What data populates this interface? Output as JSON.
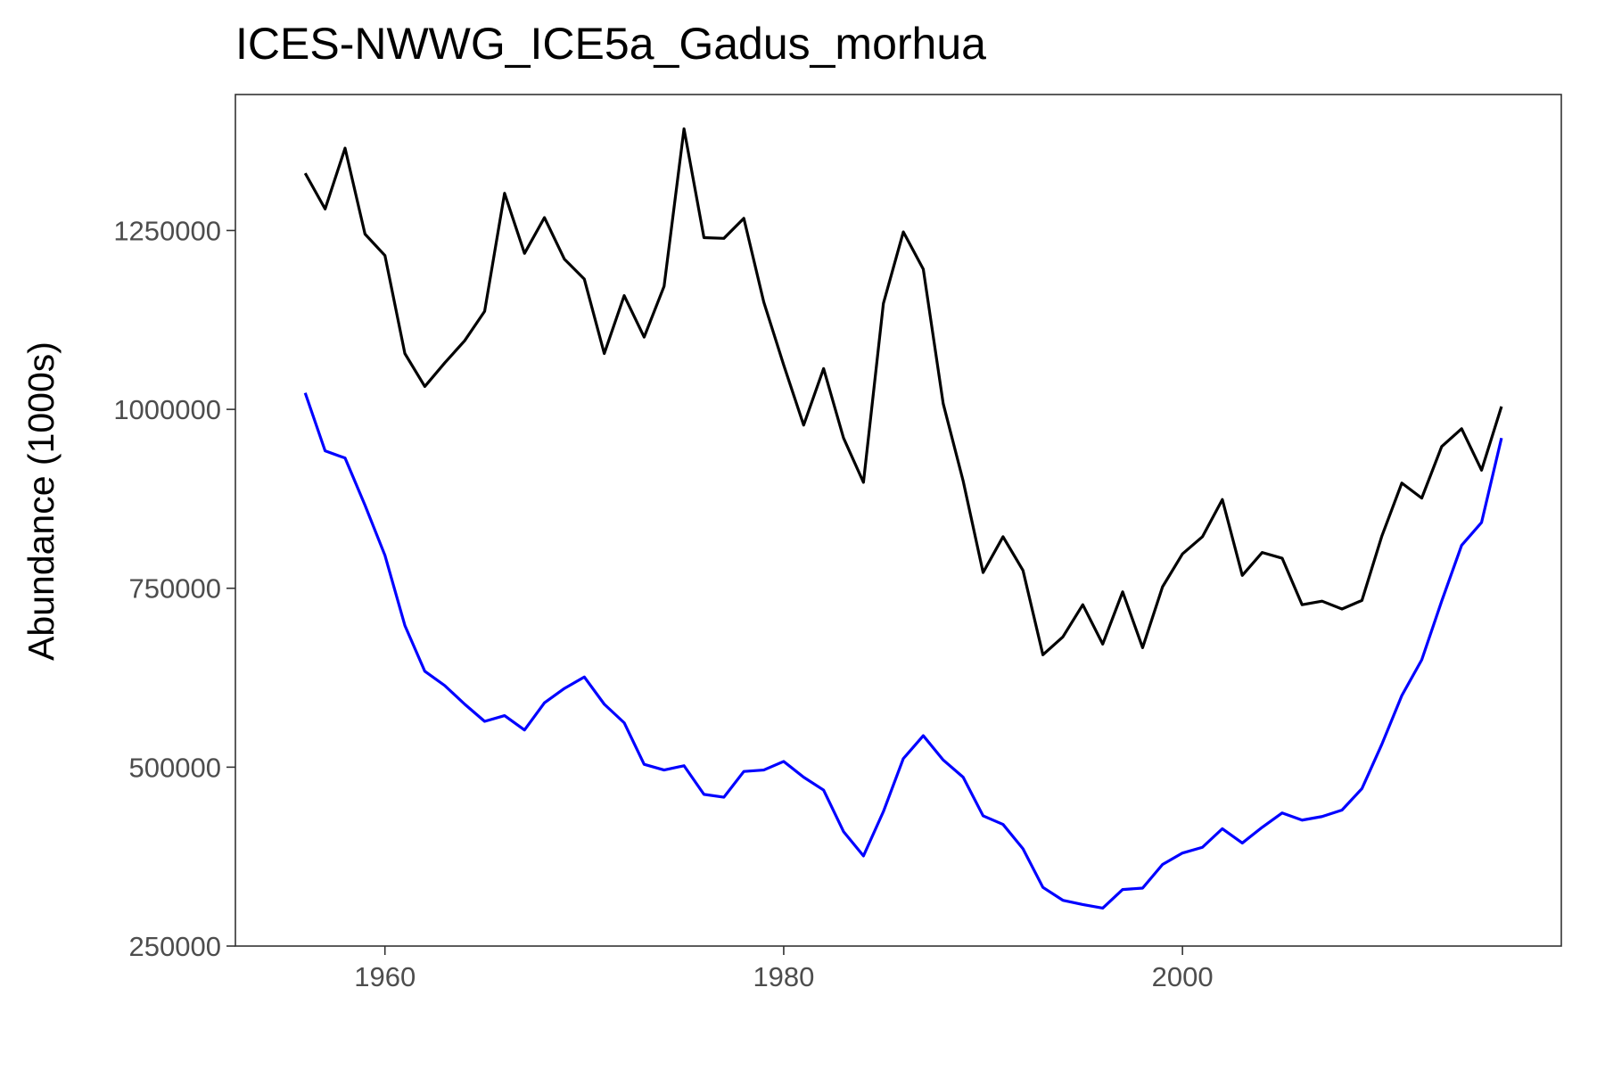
{
  "chart_data": {
    "type": "line",
    "title": "ICES-NWWG_ICE5a_Gadus_morhua",
    "xlabel": "",
    "ylabel": "Abundance (1000s)",
    "xlim": [
      1952.5,
      2019
    ],
    "ylim": [
      250000,
      1440000
    ],
    "x_ticks": [
      1960,
      1980,
      2000
    ],
    "y_ticks": [
      250000,
      500000,
      750000,
      1000000,
      1250000
    ],
    "grid": false,
    "legend": "none",
    "x": [
      1956,
      1957,
      1958,
      1959,
      1960,
      1961,
      1962,
      1963,
      1964,
      1965,
      1966,
      1967,
      1968,
      1969,
      1970,
      1971,
      1972,
      1973,
      1974,
      1975,
      1976,
      1977,
      1978,
      1979,
      1980,
      1981,
      1982,
      1983,
      1984,
      1985,
      1986,
      1987,
      1988,
      1989,
      1990,
      1991,
      1992,
      1993,
      1994,
      1995,
      1996,
      1997,
      1998,
      1999,
      2000,
      2001,
      2002,
      2003,
      2004,
      2005,
      2006,
      2007,
      2008,
      2009,
      2010,
      2011,
      2012,
      2013,
      2014,
      2015,
      2016
    ],
    "series": [
      {
        "color": "#000000",
        "values": [
          1330000,
          1280000,
          1365000,
          1245000,
          1215000,
          1078000,
          1032000,
          1065000,
          1096000,
          1137000,
          1302000,
          1218000,
          1268000,
          1210000,
          1182000,
          1078000,
          1159000,
          1101000,
          1172000,
          1392000,
          1240000,
          1239000,
          1267000,
          1150000,
          1062000,
          978000,
          1057000,
          960000,
          898000,
          1148000,
          1248000,
          1196000,
          1008000,
          900000,
          772000,
          822000,
          775000,
          657000,
          682000,
          727000,
          672000,
          745000,
          667000,
          752000,
          798000,
          822000,
          874000,
          768000,
          800000,
          792000,
          727000,
          732000,
          721000,
          733000,
          823000,
          897000,
          876000,
          948000,
          973000,
          915000,
          1004000
        ]
      },
      {
        "color": "#0000ff",
        "values": [
          1023000,
          942000,
          932000,
          866000,
          796000,
          698000,
          634000,
          614000,
          588000,
          564000,
          572000,
          552000,
          590000,
          610000,
          626000,
          588000,
          562000,
          504000,
          496000,
          502000,
          462000,
          458000,
          494000,
          496000,
          508000,
          486000,
          468000,
          410000,
          376000,
          438000,
          512000,
          544000,
          510000,
          486000,
          432000,
          420000,
          386000,
          332000,
          314000,
          308000,
          303000,
          329000,
          331000,
          364000,
          380000,
          388000,
          414000,
          394000,
          416000,
          436000,
          426000,
          431000,
          440000,
          470000,
          532000,
          600000,
          650000,
          732000,
          810000,
          842000,
          960000
        ]
      }
    ]
  }
}
